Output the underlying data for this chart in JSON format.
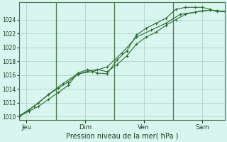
{
  "xlabel": "Pression niveau de la mer( hPa )",
  "background_color": "#cceee6",
  "plot_bg_color": "#d8f5ef",
  "grid_color": "#b8d8d0",
  "line_color": "#2d6e2d",
  "vline_color": "#4a7a4a",
  "ylim": [
    1009.5,
    1026.5
  ],
  "yticks": [
    1010,
    1012,
    1014,
    1016,
    1018,
    1020,
    1022,
    1024
  ],
  "xlim": [
    0,
    168
  ],
  "day_positions": [
    6,
    54,
    102,
    150
  ],
  "day_labels": [
    "Jeu",
    "Dim",
    "Ven",
    "Sam"
  ],
  "vline_positions": [
    30,
    78,
    126
  ],
  "s1_x": [
    0,
    8,
    16,
    24,
    32,
    40,
    48,
    56,
    64,
    72,
    80,
    88,
    96,
    104,
    112,
    120,
    128,
    136,
    144,
    150,
    156,
    162,
    168
  ],
  "s1_y": [
    1010.1,
    1011.0,
    1012.0,
    1013.2,
    1014.1,
    1015.0,
    1016.1,
    1016.6,
    1016.8,
    1016.5,
    1017.5,
    1018.8,
    1020.5,
    1021.5,
    1022.2,
    1023.2,
    1024.0,
    1024.8,
    1025.1,
    1025.3,
    1025.4,
    1025.3,
    1025.2
  ],
  "s2_x": [
    0,
    8,
    16,
    24,
    32,
    40,
    48,
    56,
    64,
    72,
    80,
    88,
    96,
    104,
    112,
    120,
    128,
    136,
    144,
    150,
    156,
    162,
    168
  ],
  "s2_y": [
    1010.0,
    1010.8,
    1011.5,
    1012.5,
    1013.5,
    1014.5,
    1016.3,
    1016.8,
    1016.3,
    1016.2,
    1018.2,
    1019.5,
    1021.8,
    1022.8,
    1023.5,
    1024.2,
    1025.5,
    1025.8,
    1025.8,
    1025.8,
    1025.5,
    1025.2,
    1025.2
  ],
  "s3_x": [
    0,
    12,
    24,
    36,
    48,
    60,
    72,
    84,
    96,
    108,
    120,
    132,
    144,
    156,
    168
  ],
  "s3_y": [
    1010.0,
    1011.5,
    1013.2,
    1014.8,
    1016.2,
    1016.5,
    1017.2,
    1019.2,
    1021.5,
    1022.5,
    1023.5,
    1024.8,
    1025.1,
    1025.4,
    1025.2
  ]
}
